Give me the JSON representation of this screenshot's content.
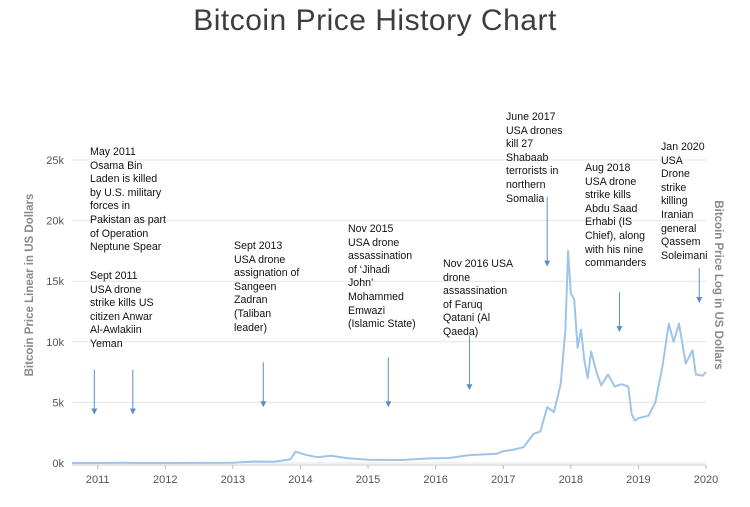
{
  "chart_data": {
    "type": "line",
    "title": "Bitcoin Price History Chart",
    "ylabel": "Bitcoin Price Linear in US Dollars",
    "ylabel_right": "Bitcoin Price Log in US Dollars",
    "xlim": [
      2010.62,
      2020.0
    ],
    "ylim": [
      0,
      25000
    ],
    "grid": true,
    "x_ticks": [
      2011,
      2012,
      2013,
      2014,
      2015,
      2016,
      2017,
      2018,
      2019,
      2020
    ],
    "x_tick_labels": [
      "2011",
      "2012",
      "2013",
      "2014",
      "2015",
      "2016",
      "2017",
      "2018",
      "2019",
      "2020"
    ],
    "y_ticks": [
      0,
      5000,
      10000,
      15000,
      20000,
      25000
    ],
    "y_tick_labels": [
      "0k",
      "5k",
      "10k",
      "15k",
      "20k",
      "25k"
    ],
    "series": [
      {
        "color": "#9ec4ea",
        "points": [
          [
            2010.62,
            0
          ],
          [
            2011.0,
            1
          ],
          [
            2011.4,
            20
          ],
          [
            2011.8,
            3
          ],
          [
            2012.5,
            8
          ],
          [
            2013.0,
            15
          ],
          [
            2013.3,
            120
          ],
          [
            2013.6,
            110
          ],
          [
            2013.85,
            300
          ],
          [
            2013.93,
            950
          ],
          [
            2014.0,
            800
          ],
          [
            2014.1,
            650
          ],
          [
            2014.25,
            480
          ],
          [
            2014.45,
            600
          ],
          [
            2014.7,
            400
          ],
          [
            2015.0,
            260
          ],
          [
            2015.5,
            250
          ],
          [
            2015.9,
            380
          ],
          [
            2016.2,
            410
          ],
          [
            2016.5,
            650
          ],
          [
            2016.9,
            760
          ],
          [
            2017.0,
            970
          ],
          [
            2017.15,
            1100
          ],
          [
            2017.3,
            1300
          ],
          [
            2017.45,
            2400
          ],
          [
            2017.55,
            2600
          ],
          [
            2017.65,
            4600
          ],
          [
            2017.75,
            4200
          ],
          [
            2017.85,
            6500
          ],
          [
            2017.92,
            11000
          ],
          [
            2017.96,
            17500
          ],
          [
            2018.0,
            14000
          ],
          [
            2018.05,
            13500
          ],
          [
            2018.1,
            9500
          ],
          [
            2018.15,
            11000
          ],
          [
            2018.2,
            8500
          ],
          [
            2018.25,
            7000
          ],
          [
            2018.3,
            9200
          ],
          [
            2018.38,
            7500
          ],
          [
            2018.45,
            6400
          ],
          [
            2018.55,
            7300
          ],
          [
            2018.65,
            6300
          ],
          [
            2018.75,
            6500
          ],
          [
            2018.85,
            6300
          ],
          [
            2018.9,
            4000
          ],
          [
            2018.95,
            3500
          ],
          [
            2019.0,
            3700
          ],
          [
            2019.15,
            3900
          ],
          [
            2019.25,
            5000
          ],
          [
            2019.35,
            7800
          ],
          [
            2019.45,
            11500
          ],
          [
            2019.52,
            10000
          ],
          [
            2019.6,
            11500
          ],
          [
            2019.7,
            8200
          ],
          [
            2019.8,
            9300
          ],
          [
            2019.85,
            7300
          ],
          [
            2019.95,
            7200
          ],
          [
            2020.0,
            7500
          ]
        ]
      }
    ],
    "annotations": [
      {
        "x": 2010.95,
        "y": 4000,
        "text": "Sept 2011\nUSA drone\nstrike kills US\ncitizen Anwar\nAl-Awlakiin\nYeman"
      },
      {
        "x": 2011.52,
        "y": 4000,
        "text": "May 2011\nOsama Bin\nLaden is killed\nby U.S. military\nforces in\nPakistan as part\nof Operation\nNeptune Spear"
      },
      {
        "x": 2013.45,
        "y": 4600,
        "text": "Sept 2013\nUSA drone\nassignation of\nSangeen\nZadran\n(Taliban\nleader)"
      },
      {
        "x": 2015.3,
        "y": 4600,
        "text": "Nov 2015\nUSA drone\nassassination\nof ‘Jihadi\nJohn’\nMohammed\nEmwazi\n(Islamic State)"
      },
      {
        "x": 2016.5,
        "y": 6000,
        "text": "Nov 2016 USA\ndrone\nassassination\nof Faruq\nQatani  (Al\nQaeda)"
      },
      {
        "x": 2017.65,
        "y": 16200,
        "text": "June 2017\nUSA drones\nkill 27\nShabaab\nterrorists in\nnorthern\nSomalia"
      },
      {
        "x": 2018.72,
        "y": 10800,
        "text": "Aug 2018\nUSA drone\nstrike kills\nAbdu Saad\nErhabi (IS\nChief), along\nwith his nine\ncommanders"
      },
      {
        "x": 2019.9,
        "y": 13200,
        "text": "Jan 2020\nUSA\nDrone\nstrike\nkilling\nIranian\ngeneral\nQassem\nSoleimani"
      }
    ]
  }
}
